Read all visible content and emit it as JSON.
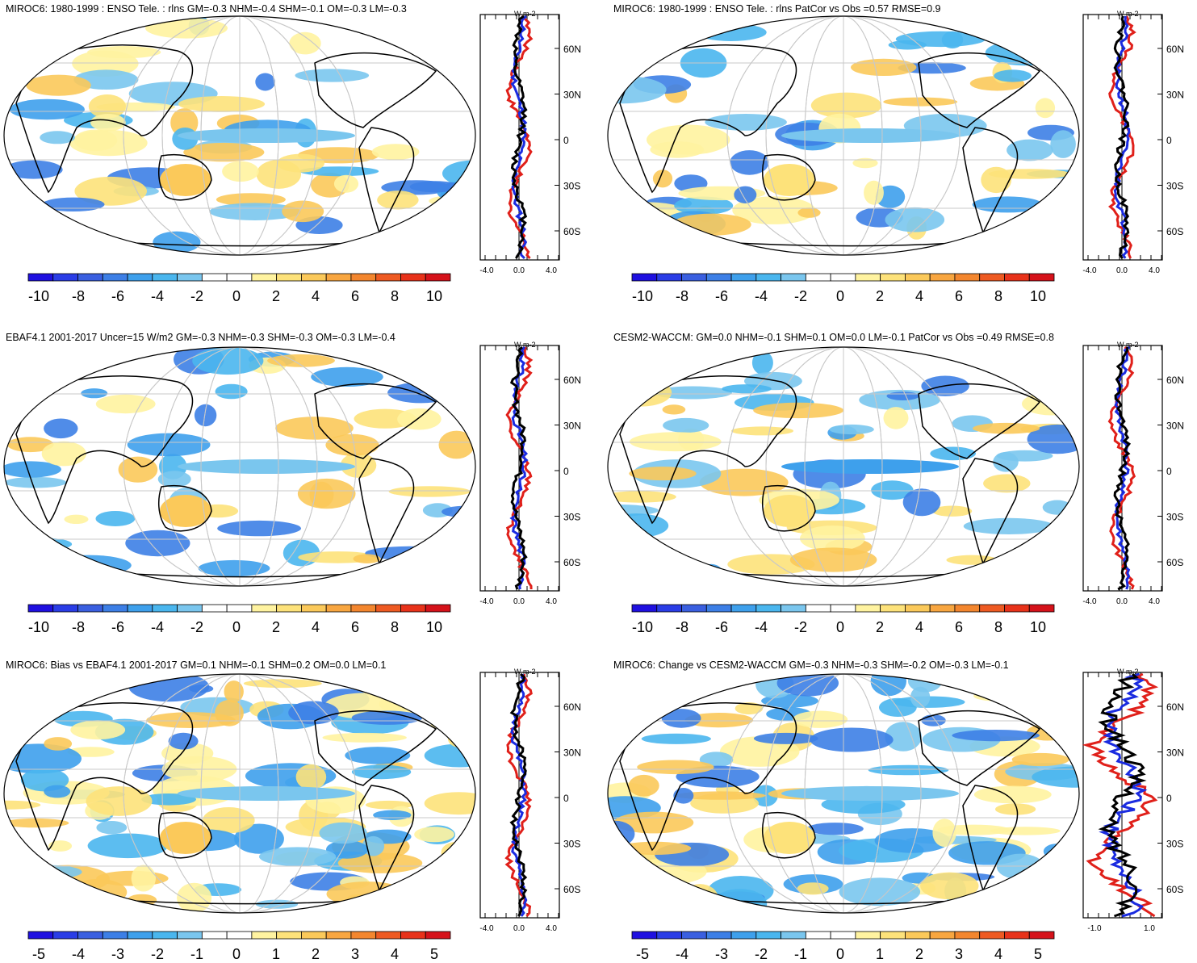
{
  "panels": [
    {
      "title": "MIROC6: 1980-1999 : ENSO Tele. : rlns GM=-0.3 NHM=-0.4 SHM=-0.1 OM=-0.3 LM=-0.3",
      "scale": "a",
      "seed": 1,
      "zonal_scale": "a"
    },
    {
      "title": "MIROC6: 1980-1999 : ENSO Tele. : rlns PatCor vs Obs =0.57 RMSE=0.9",
      "scale": "a",
      "seed": 2,
      "zonal_scale": "a"
    },
    {
      "title": "EBAF4.1 2001-2017 Uncer=15 W/m2 GM=-0.3 NHM=-0.3 SHM=-0.3 OM=-0.3 LM=-0.4",
      "scale": "a",
      "seed": 3,
      "zonal_scale": "a"
    },
    {
      "title": "CESM2-WACCM: GM=0.0 NHM=-0.1 SHM=0.1 OM=0.0 LM=-0.1 PatCor vs Obs =0.49 RMSE=0.8",
      "scale": "a",
      "seed": 4,
      "zonal_scale": "a"
    },
    {
      "title": "MIROC6: Bias vs EBAF4.1 2001-2017 GM=0.1 NHM=-0.1 SHM=0.2 OM=0.0 LM=0.1",
      "scale": "b",
      "seed": 5,
      "zonal_scale": "a"
    },
    {
      "title": "MIROC6: Change vs CESM2-WACCM GM=-0.3 NHM=-0.3 SHM=-0.2 OM=-0.3 LM=-0.1",
      "scale": "b",
      "seed": 6,
      "zonal_scale": "b"
    }
  ],
  "colorbar_a": [
    "-10",
    "-8",
    "-6",
    "-4",
    "-2",
    "0",
    "2",
    "4",
    "6",
    "8",
    "10"
  ],
  "colorbar_b": [
    "-5",
    "-4",
    "-3",
    "-2",
    "-1",
    "0",
    "1",
    "2",
    "3",
    "4",
    "5"
  ],
  "colorbar_colors": [
    "#1f10e0",
    "#2a3de6",
    "#3a5fe0",
    "#3d7fe6",
    "#3ea0ec",
    "#4ab6ee",
    "#7ac6ee",
    "#ffffff",
    "#ffffff",
    "#fff3a0",
    "#fde27a",
    "#fbc95a",
    "#f8a640",
    "#f3862e",
    "#ee5a22",
    "#e8321a",
    "#d5121a"
  ],
  "zonal_axis": {
    "unit": "W m-2",
    "lat_labels": [
      "60N",
      "30N",
      "0",
      "30S",
      "60S"
    ],
    "xticks_a": [
      "-4.0",
      "0.0",
      "4.0"
    ],
    "xticks_b": [
      "-1.0",
      "1.0"
    ]
  },
  "chart_data": {
    "type": "heatmap",
    "description_fields": "Six global maps (Robinson-like projection) of ENSO teleconnection rlns with zonal-mean side plots",
    "zonal_series_colors": {
      "model": "#e0201a",
      "obs": "#1a2be0",
      "mean": "#000000"
    }
  }
}
